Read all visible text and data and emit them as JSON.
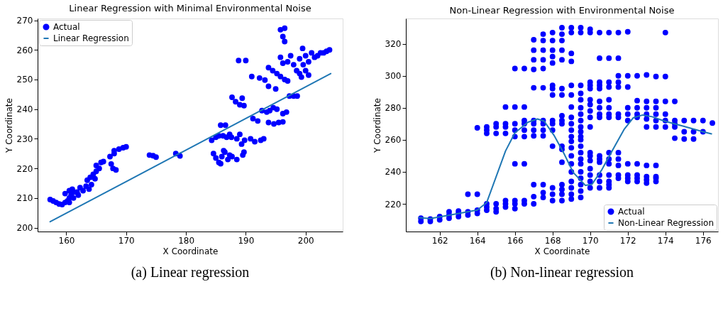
{
  "chart_data": [
    {
      "type": "scatter",
      "title": "Linear Regression with Minimal Environmental Noise",
      "xlabel": "X Coordinate",
      "ylabel": "Y Coordinate",
      "annotations": [
        "(a) Linear regression"
      ],
      "xlim": [
        155.2,
        206.2
      ],
      "ylim": [
        198.7,
        270.6
      ],
      "xticks": [
        160,
        170,
        180,
        190,
        200
      ],
      "yticks": [
        200,
        210,
        220,
        230,
        240,
        250,
        260,
        270
      ],
      "grid": false,
      "legend": "top left",
      "marker": "circle",
      "series": [
        {
          "name": "Actual",
          "color": "#0000ff",
          "x": [
            157.3,
            157.8,
            158.3,
            158.8,
            159.3,
            159.8,
            160.2,
            160.5,
            160.8,
            161.2,
            160.5,
            159.8,
            160.5,
            161,
            161.3,
            161.8,
            162.3,
            162.8,
            163.3,
            163.8,
            164.2,
            162,
            163.5,
            164,
            164.5,
            165,
            165.5,
            164.8,
            165,
            165.8,
            166.2,
            167.3,
            167.5,
            167.8,
            168.3,
            168,
            168,
            168.8,
            169.5,
            170,
            173.9,
            174.5,
            175,
            178.3,
            179,
            184.3,
            185,
            185.5,
            186.2,
            186.8,
            187.3,
            185.8,
            186.6,
            184.6,
            185,
            185.5,
            186,
            186.5,
            187,
            187.3,
            185.8,
            186.3,
            187.7,
            188.5,
            189.5,
            189.7,
            187.6,
            188.5,
            189,
            189.8,
            189.3,
            187.7,
            188.3,
            189,
            189.7,
            189.4,
            190.8,
            191.5,
            192.5,
            193,
            191.2,
            192,
            192.7,
            193.5,
            194,
            193.8,
            194.7,
            195.5,
            196.2,
            194.6,
            195.2,
            196.2,
            196.8,
            197.3,
            198,
            198.6,
            188.8,
            190,
            191,
            192.3,
            193.2,
            193.8,
            195,
            193.8,
            194.5,
            195.2,
            195.8,
            196.5,
            197,
            195.8,
            196.5,
            196.2,
            196.5,
            195.8,
            196.2,
            197,
            197.5,
            198,
            198.5,
            199,
            199,
            199.5,
            199.6,
            200,
            200,
            200.5,
            200.5,
            201,
            201.5,
            202,
            202.5,
            203,
            203.5,
            204,
            199.3
          ],
          "values": [
            209.5,
            209,
            208.5,
            208,
            207.8,
            208.5,
            209,
            210,
            211,
            210,
            208.5,
            211.5,
            212.5,
            213,
            212,
            212,
            213.5,
            212.5,
            214,
            213,
            214.5,
            211,
            216,
            217,
            218,
            219,
            220,
            216.5,
            221,
            222,
            222.3,
            224,
            221.5,
            220,
            219.5,
            225,
            226,
            226.5,
            227,
            227.3,
            224.5,
            224.3,
            223.8,
            225,
            224.2,
            229.5,
            230.5,
            231,
            231,
            230.5,
            231.5,
            234.6,
            234.6,
            225,
            223.5,
            222,
            224,
            225.5,
            223,
            224.5,
            221.6,
            226,
            224,
            223,
            224.5,
            225.5,
            230.5,
            230,
            231.5,
            229.5,
            228.2,
            244,
            242.5,
            241.5,
            241.2,
            243.7,
            230,
            229,
            229.5,
            230,
            236.8,
            236,
            239.5,
            239,
            239.5,
            235.5,
            235,
            235.5,
            235.7,
            240.5,
            240,
            238.5,
            239,
            244.4,
            244.4,
            244.4,
            256.4,
            256.4,
            251,
            250.5,
            249.8,
            247.7,
            246.8,
            254,
            253,
            252,
            251,
            250,
            249.5,
            266.8,
            267.3,
            264.5,
            262.8,
            257.5,
            255.5,
            256,
            258,
            255,
            253,
            252,
            257,
            260.5,
            255,
            258,
            253,
            256,
            251.5,
            259,
            257.5,
            258,
            259,
            259,
            259.5,
            260,
            250.8
          ]
        },
        {
          "name": "Linear Regression",
          "type": "line",
          "marker": "none",
          "line_style": "solid",
          "color": "#1f77b4",
          "x": [
            157.3,
            204.2
          ],
          "values": [
            202,
            252
          ]
        }
      ]
    },
    {
      "type": "scatter",
      "title": "Non-Linear Regression with Environmental Noise",
      "xlabel": "X Coordinate",
      "ylabel": "Y Coordinate",
      "annotations": [
        "(b) Non-linear regression"
      ],
      "xlim": [
        160.2,
        176.8
      ],
      "ylim": [
        202.7,
        335.8
      ],
      "xticks": [
        162,
        164,
        166,
        168,
        170,
        172,
        174,
        176
      ],
      "yticks": [
        220,
        240,
        260,
        280,
        300,
        320
      ],
      "grid": false,
      "legend": "bottom right",
      "marker": "circle",
      "series": [
        {
          "name": "Actual",
          "color": "#0000ff",
          "x": [
            161,
            161,
            161.5,
            161.5,
            162,
            162,
            162.5,
            162.5,
            162.5,
            163,
            163,
            163,
            163.5,
            163.5,
            163.5,
            164,
            164,
            164,
            164,
            164.5,
            164.5,
            164.5,
            164.5,
            164.5,
            164.5,
            165,
            165,
            165,
            165,
            165,
            165,
            165.5,
            165.5,
            165.5,
            165.5,
            165.5,
            165.5,
            165.5,
            166,
            166,
            166,
            166,
            166,
            166,
            166,
            166,
            166,
            166.5,
            166.5,
            166.5,
            166.5,
            166.5,
            166.5,
            166.5,
            166.5,
            166.5,
            167,
            167,
            167,
            167,
            167,
            167,
            167,
            167,
            167,
            167,
            167,
            167,
            167.5,
            167.5,
            167.5,
            167.5,
            167.5,
            167.5,
            167.5,
            167.5,
            167.5,
            167.5,
            167.5,
            167.5,
            167.5,
            168,
            168,
            168,
            168,
            168,
            168,
            168,
            168,
            168,
            168,
            168,
            168,
            168,
            168,
            168,
            168.5,
            168.5,
            168.5,
            168.5,
            168.5,
            168.5,
            168.5,
            168.5,
            168.5,
            168.5,
            168.5,
            168.5,
            168.5,
            168.5,
            168.5,
            168.5,
            168.5,
            169,
            169,
            169,
            169,
            169,
            169,
            169,
            169,
            169,
            169,
            169,
            169,
            169,
            169,
            169,
            169,
            169,
            169,
            169,
            169,
            169.5,
            169.5,
            169.5,
            169.5,
            169.5,
            169.5,
            169.5,
            169.5,
            169.5,
            169.5,
            169.5,
            169.5,
            169.5,
            169.5,
            169.5,
            169.5,
            169.5,
            169.5,
            169.5,
            169.5,
            169.5,
            170,
            170,
            170,
            170,
            170,
            170,
            170,
            170,
            170,
            170,
            170,
            170,
            170,
            170,
            170,
            170,
            170,
            170.5,
            170.5,
            170.5,
            170.5,
            170.5,
            170.5,
            170.5,
            170.5,
            170.5,
            170.5,
            170.5,
            170.5,
            170.5,
            170.5,
            170.5,
            171,
            171,
            171,
            171,
            171,
            171,
            171,
            171,
            171,
            171,
            171,
            171,
            171,
            171,
            171,
            171.5,
            171.5,
            171.5,
            171.5,
            171.5,
            171.5,
            171.5,
            171.5,
            171.5,
            171.5,
            171.5,
            171.5,
            172,
            172,
            172,
            172,
            172,
            172,
            172,
            172,
            172,
            172,
            172.5,
            172.5,
            172.5,
            172.5,
            172.5,
            172.5,
            172.5,
            172.5,
            172.5,
            173,
            173,
            173,
            173,
            173,
            173,
            173,
            173,
            173,
            173,
            173.5,
            173.5,
            173.5,
            173.5,
            173.5,
            173.5,
            173.5,
            173.5,
            173.5,
            173.5,
            174,
            174,
            174,
            174,
            174,
            174,
            174.5,
            174.5,
            174.5,
            174.5,
            174.5,
            175,
            175,
            175,
            175.5,
            175.5,
            175.5,
            176,
            176,
            176.5
          ],
          "values": [
            209,
            211,
            209,
            210.5,
            210,
            212,
            211,
            213,
            215,
            212,
            214,
            215.5,
            213,
            215,
            226,
            214,
            216,
            226,
            267.5,
            216,
            218,
            220,
            264,
            266,
            268,
            215,
            217,
            220,
            264,
            268,
            270,
            218,
            220,
            222,
            264,
            268,
            270,
            280.5,
            217,
            220,
            222,
            245,
            262,
            266,
            270,
            280.5,
            304.5,
            220,
            222,
            245,
            262,
            266,
            270,
            272,
            280.5,
            304.5,
            220,
            224.5,
            232,
            262.5,
            266,
            270,
            272,
            292.5,
            304,
            310,
            316,
            322.5,
            224,
            227,
            232,
            262.5,
            266,
            270,
            272,
            292.5,
            304.5,
            310,
            316,
            322,
            326,
            222,
            226,
            230,
            256,
            266,
            270,
            272,
            288,
            292,
            294,
            308,
            312,
            316,
            322,
            327,
            222,
            226,
            229,
            232,
            246,
            254,
            256,
            270,
            272,
            275,
            288,
            292,
            310,
            316,
            322,
            326,
            330,
            223,
            226,
            230,
            234,
            240,
            245,
            250,
            255,
            259,
            262,
            266,
            270,
            274,
            280.5,
            288,
            294,
            309,
            314,
            327,
            330,
            224,
            228,
            232,
            236,
            240,
            245,
            248,
            252,
            256,
            260,
            262,
            265,
            268,
            272,
            276,
            280,
            285,
            289,
            294,
            327,
            330,
            230,
            234,
            238,
            242,
            247,
            250,
            252,
            268,
            274,
            278,
            282,
            285,
            292,
            294,
            296,
            327,
            329,
            230,
            234,
            238,
            246,
            248,
            250,
            274,
            276,
            280,
            284,
            292,
            294,
            296,
            311,
            327,
            230,
            232,
            234,
            238,
            245,
            248,
            252,
            274,
            276,
            280,
            285,
            293,
            296,
            311,
            327,
            236,
            238,
            244,
            248,
            252,
            274,
            276,
            293,
            296,
            300,
            311,
            327,
            234,
            236,
            238,
            245,
            272,
            276,
            280,
            293,
            300,
            327.5,
            234,
            236,
            238,
            245,
            274,
            276,
            280,
            284.5,
            300,
            233,
            235,
            237,
            244,
            268,
            273,
            276,
            280,
            284,
            300.5,
            234,
            236,
            237,
            244,
            268,
            272,
            276,
            280,
            284,
            299.5,
            268,
            272,
            276,
            284,
            299.5,
            327,
            261,
            268,
            270,
            272,
            284,
            260.5,
            265,
            272,
            260.5,
            265,
            272,
            265,
            272,
            270.5
          ]
        },
        {
          "name": "Non-Linear Regression",
          "type": "line",
          "marker": "none",
          "line_style": "solid",
          "color": "#1f77b4",
          "x": [
            160.9,
            161.5,
            162.45,
            164,
            164.5,
            165.5,
            166,
            166.7,
            167.2,
            167.55,
            168.1,
            168.6,
            169.1,
            169.75,
            170.1,
            170.6,
            171.1,
            171.8,
            172.3,
            172.8,
            173.3,
            173.95,
            175,
            176,
            176.45
          ],
          "values": [
            211.4,
            210.8,
            212.8,
            216.1,
            220.8,
            253,
            264.4,
            271,
            273,
            271.7,
            262.4,
            251.6,
            239.6,
            231.5,
            232.2,
            240.9,
            251.6,
            266.4,
            273.8,
            275.5,
            274.4,
            271.7,
            268.4,
            265,
            263.7
          ]
        }
      ]
    }
  ]
}
